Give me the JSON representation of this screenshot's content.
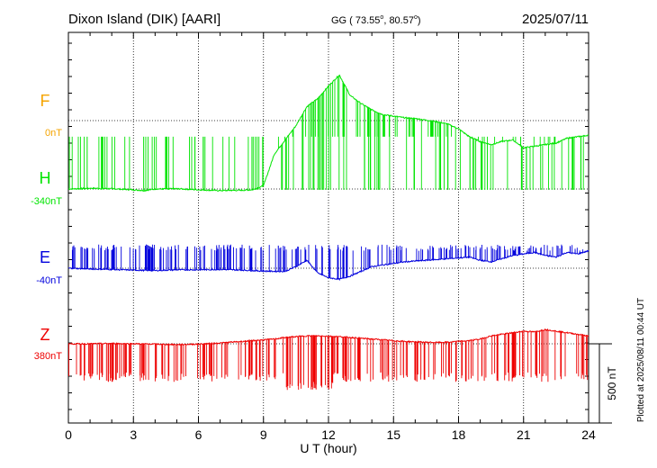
{
  "header": {
    "station": "Dixon Island (DIK)  [AARI]",
    "coords_prefix": "GG ( 73.55",
    "coords_sep": ",  80.57",
    "coords_suffix": ")",
    "degree_mark": "o",
    "date": "2025/07/11"
  },
  "side_note": "Plotted at 2025/08/11 00:44 UT",
  "colors": {
    "F": "#f5a400",
    "H": "#00e400",
    "E": "#0000dd",
    "Z": "#ee0000",
    "axis": "#000000",
    "grid": "#000000"
  },
  "chart_data": {
    "type": "line",
    "title": "Dixon Island (DIK)  [AARI]",
    "xlabel": "U T (hour)",
    "ylabel": "",
    "x_range": [
      0,
      24
    ],
    "x_ticks": [
      0,
      3,
      6,
      9,
      12,
      15,
      18,
      21,
      24
    ],
    "x_tick_labels": [
      "0",
      "3",
      "6",
      "9",
      "12",
      "15",
      "18",
      "21",
      "24"
    ],
    "y_range_nT": [
      -740,
      480
    ],
    "grid": "dotted",
    "scale_bar": {
      "value_nT": 500,
      "label": "500 nT"
    },
    "series": [
      {
        "name": "F",
        "baseline_label": "0nT",
        "baseline_nT": 0,
        "color": "#f5a400",
        "x": [],
        "values": []
      },
      {
        "name": "H",
        "baseline_label": "-340nT",
        "baseline_nT": -340,
        "color": "#00e400",
        "x": [
          0,
          1,
          2,
          3,
          3.5,
          4,
          5,
          6,
          7,
          8,
          8.5,
          9,
          9.5,
          10,
          10.5,
          11,
          11.5,
          12,
          12.5,
          13,
          13.5,
          14,
          14.5,
          15,
          15.5,
          16,
          16.5,
          17,
          17.5,
          18,
          18.5,
          19,
          19.5,
          20,
          20.5,
          21,
          21.5,
          22,
          22.5,
          23,
          23.5,
          24
        ],
        "values": [
          -340,
          -335,
          -338,
          -345,
          -350,
          -340,
          -338,
          -345,
          -350,
          -348,
          -345,
          -320,
          -120,
          -30,
          60,
          180,
          230,
          310,
          380,
          250,
          200,
          160,
          130,
          120,
          110,
          105,
          95,
          85,
          70,
          40,
          -10,
          -40,
          -60,
          -40,
          -30,
          -80,
          -70,
          -60,
          -50,
          -20,
          -10,
          0
        ],
        "spikes": {
          "min": -345,
          "max": -10,
          "note": "dense dropouts between baseline and about -10 nT during hours 0-9 and 9.5-24"
        }
      },
      {
        "name": "E",
        "baseline_label": "-40nT",
        "baseline_nT": -40,
        "color": "#0000dd",
        "x": [
          0,
          1,
          2,
          3,
          4,
          5,
          6,
          7,
          8,
          8.5,
          9,
          9.5,
          10,
          10.5,
          11,
          11.5,
          12,
          12.5,
          13,
          13.5,
          14,
          14.5,
          15,
          15.5,
          16,
          16.5,
          17,
          17.5,
          18,
          18.5,
          19,
          19.5,
          20,
          20.5,
          21,
          21.5,
          22,
          22.5,
          23,
          23.5,
          24
        ],
        "values": [
          -40,
          -45,
          -48,
          -52,
          -55,
          -50,
          -50,
          -48,
          -52,
          -55,
          -58,
          -60,
          -60,
          -30,
          10,
          -70,
          -100,
          -110,
          -90,
          -60,
          -30,
          -20,
          -10,
          0,
          5,
          10,
          15,
          20,
          25,
          30,
          10,
          0,
          20,
          40,
          50,
          60,
          40,
          30,
          60,
          50,
          70
        ],
        "spikes": {
          "min": -60,
          "max": 110,
          "note": "frequent upward dropouts to about +60 nT"
        }
      },
      {
        "name": "Z",
        "baseline_label": "380nT",
        "baseline_nT": 380,
        "color": "#ee0000",
        "x": [
          0,
          1,
          2,
          3,
          4,
          5,
          6,
          7,
          8,
          9,
          9.5,
          10,
          10.5,
          11,
          11.5,
          12,
          12.5,
          13,
          13.5,
          14,
          14.5,
          15,
          15.5,
          16,
          16.5,
          17,
          17.5,
          18,
          18.5,
          19,
          19.5,
          20,
          20.5,
          21,
          21.5,
          22,
          22.5,
          23,
          23.5,
          24
        ],
        "values": [
          380,
          380,
          382,
          380,
          378,
          375,
          378,
          385,
          395,
          405,
          410,
          420,
          425,
          430,
          430,
          428,
          425,
          420,
          415,
          410,
          405,
          400,
          395,
          392,
          390,
          388,
          390,
          395,
          400,
          410,
          430,
          440,
          450,
          460,
          455,
          470,
          460,
          450,
          440,
          430
        ],
        "spikes": {
          "min": 140,
          "max": 470,
          "note": "deep downward dropouts to about 140 nT, larger near hour 11-12"
        }
      }
    ]
  }
}
